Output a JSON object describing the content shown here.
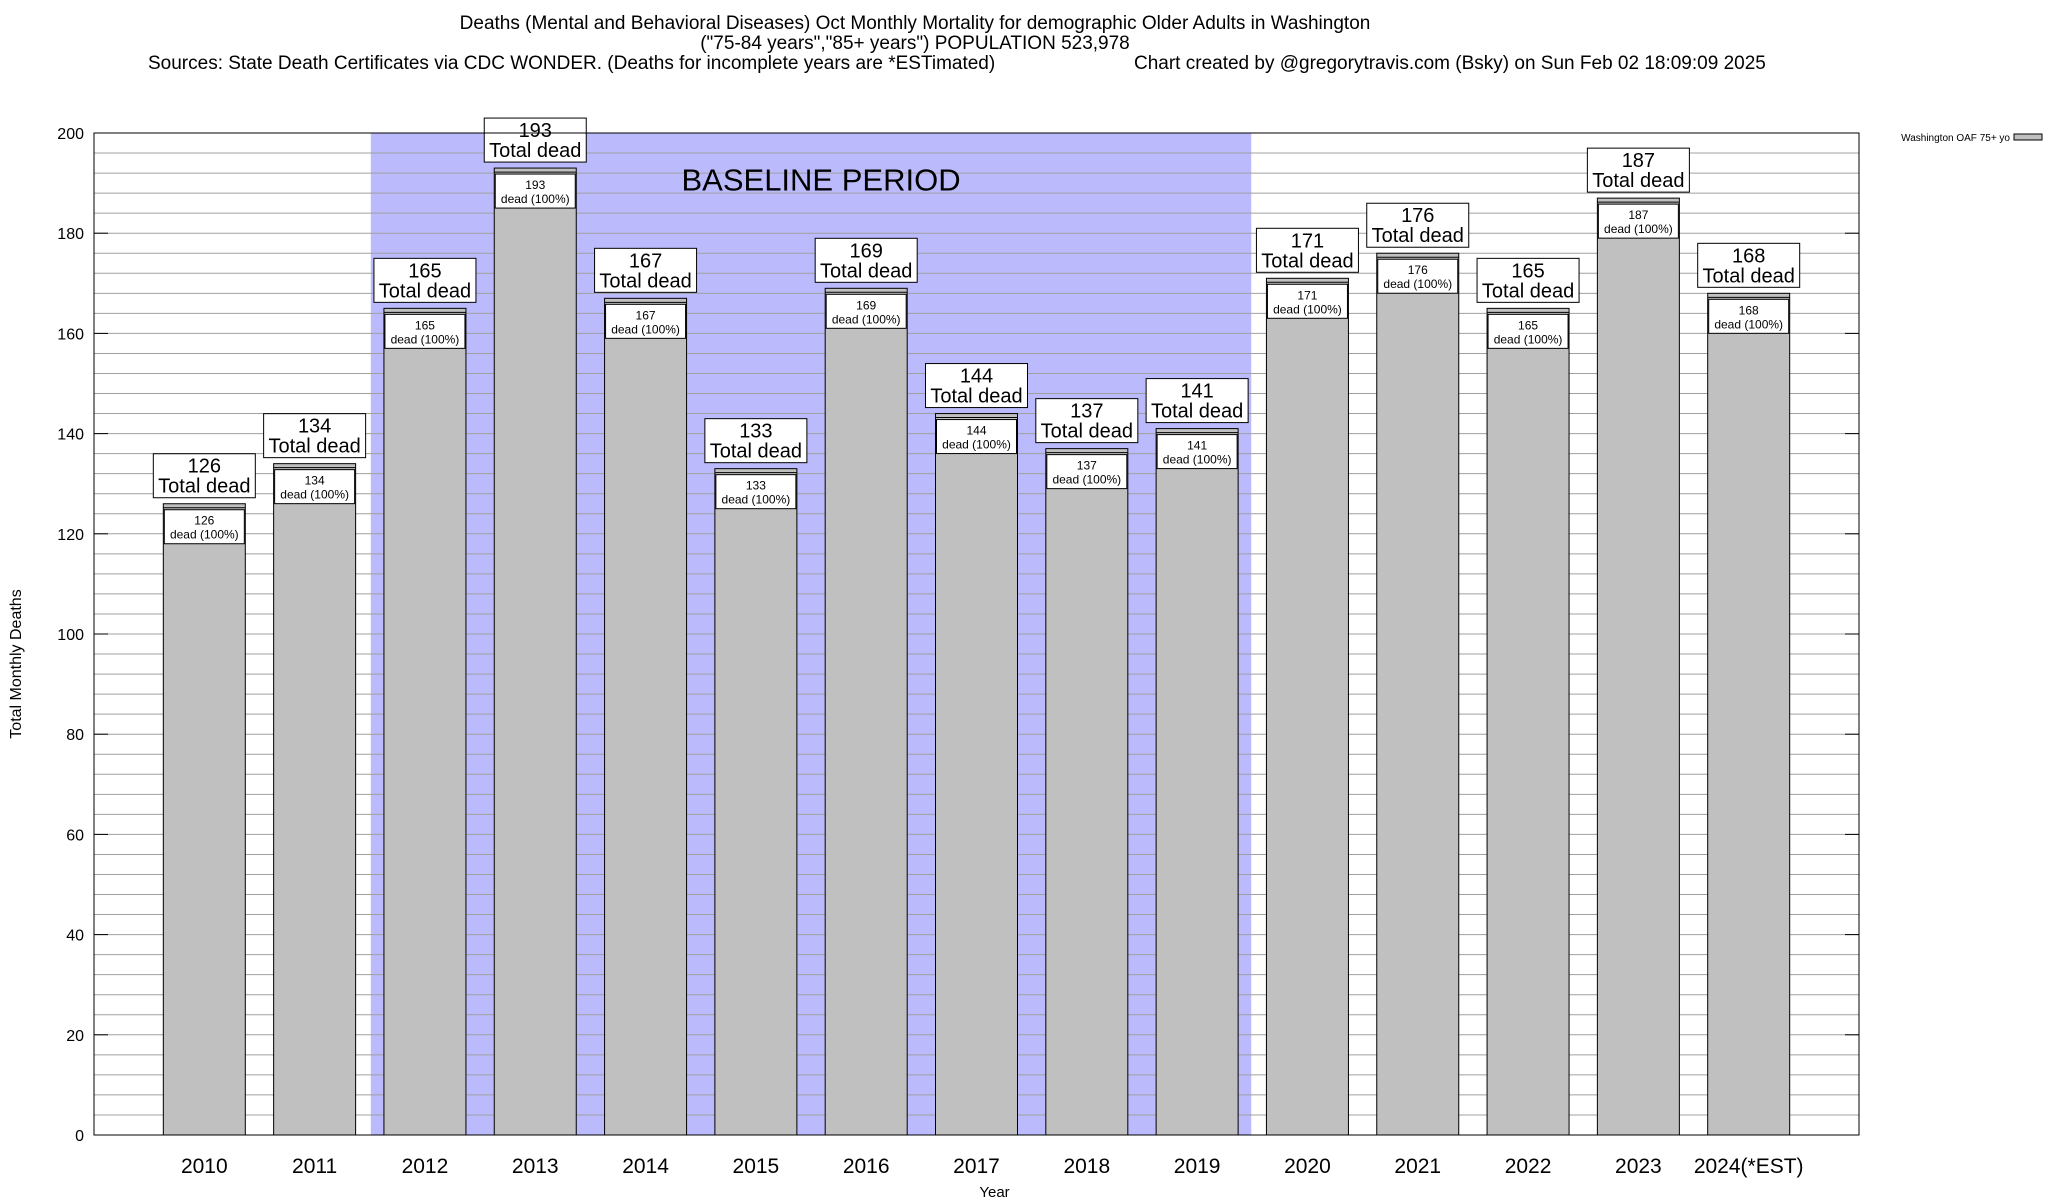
{
  "header": {
    "title_line1": "Deaths (Mental and Behavioral Diseases) Oct Monthly Mortality for demographic Older Adults in Washington",
    "title_line2": "(\"75-84 years\",\"85+ years\") POPULATION 523,978",
    "sources": "Sources: State Death Certificates via CDC WONDER. (Deaths for incomplete years are *ESTimated)",
    "credit": "Chart created by @gregorytravis.com (Bsky) on Sun Feb 02 18:09:09 2025"
  },
  "chart_data": {
    "type": "bar",
    "xlabel": "Year",
    "ylabel": "Total Monthly Deaths",
    "ylim": [
      0,
      200
    ],
    "yticks": [
      0,
      20,
      40,
      60,
      80,
      100,
      120,
      140,
      160,
      180,
      200
    ],
    "grid": "horizontal minor lines every 4",
    "legend": {
      "placement": "top-right",
      "label": "Washington OAF 75+ yo"
    },
    "categories": [
      "2010",
      "2011",
      "2012",
      "2013",
      "2014",
      "2015",
      "2016",
      "2017",
      "2018",
      "2019",
      "2020",
      "2021",
      "2022",
      "2023",
      "2024(*EST)"
    ],
    "series": [
      {
        "name": "Washington OAF 75+ yo",
        "values": [
          126,
          134,
          165,
          193,
          167,
          133,
          169,
          144,
          137,
          141,
          171,
          176,
          165,
          187,
          168
        ]
      }
    ],
    "total_label": "Total dead",
    "inner_label": "dead (100%)",
    "baseline": {
      "label": "BASELINE PERIOD",
      "start": "2012",
      "end": "2019"
    },
    "colors": {
      "bar": "#c0c0c0",
      "baseline": "#babafc",
      "grid": "#a0a0a0"
    }
  }
}
